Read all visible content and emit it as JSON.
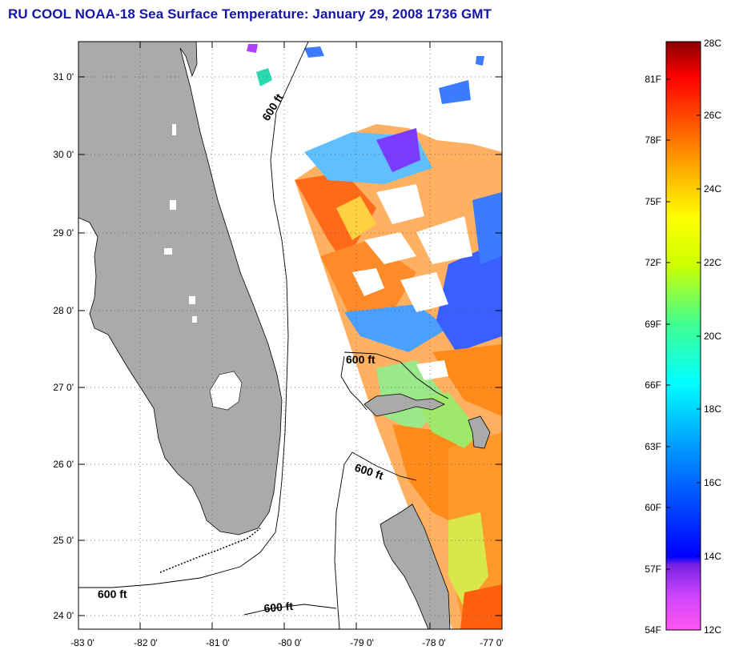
{
  "title": "RU COOL  NOAA-18  Sea Surface Temperature:  January 29, 2008 1736 GMT",
  "map": {
    "lat_labels": [
      "31 0'",
      "30 0'",
      "29 0'",
      "28 0'",
      "27 0'",
      "26 0'",
      "25 0'",
      "24 0'"
    ],
    "lon_labels": [
      "-83 0'",
      "-82 0'",
      "-81 0'",
      "-80 0'",
      "-79 0'",
      "-78 0'",
      "-77 0'"
    ],
    "isobath_labels": [
      "600 ft",
      "600 ft",
      "600 ft",
      "600 ft",
      "600 ft"
    ],
    "land_color": "#aaaaaa"
  },
  "colorbar": {
    "celsius_labels": [
      "28C",
      "26C",
      "24C",
      "22C",
      "20C",
      "18C",
      "16C",
      "14C",
      "12C"
    ],
    "fahrenheit_labels": [
      "81F",
      "78F",
      "75F",
      "72F",
      "69F",
      "66F",
      "63F",
      "60F",
      "57F",
      "54F"
    ],
    "range_celsius": [
      12,
      28
    ]
  }
}
